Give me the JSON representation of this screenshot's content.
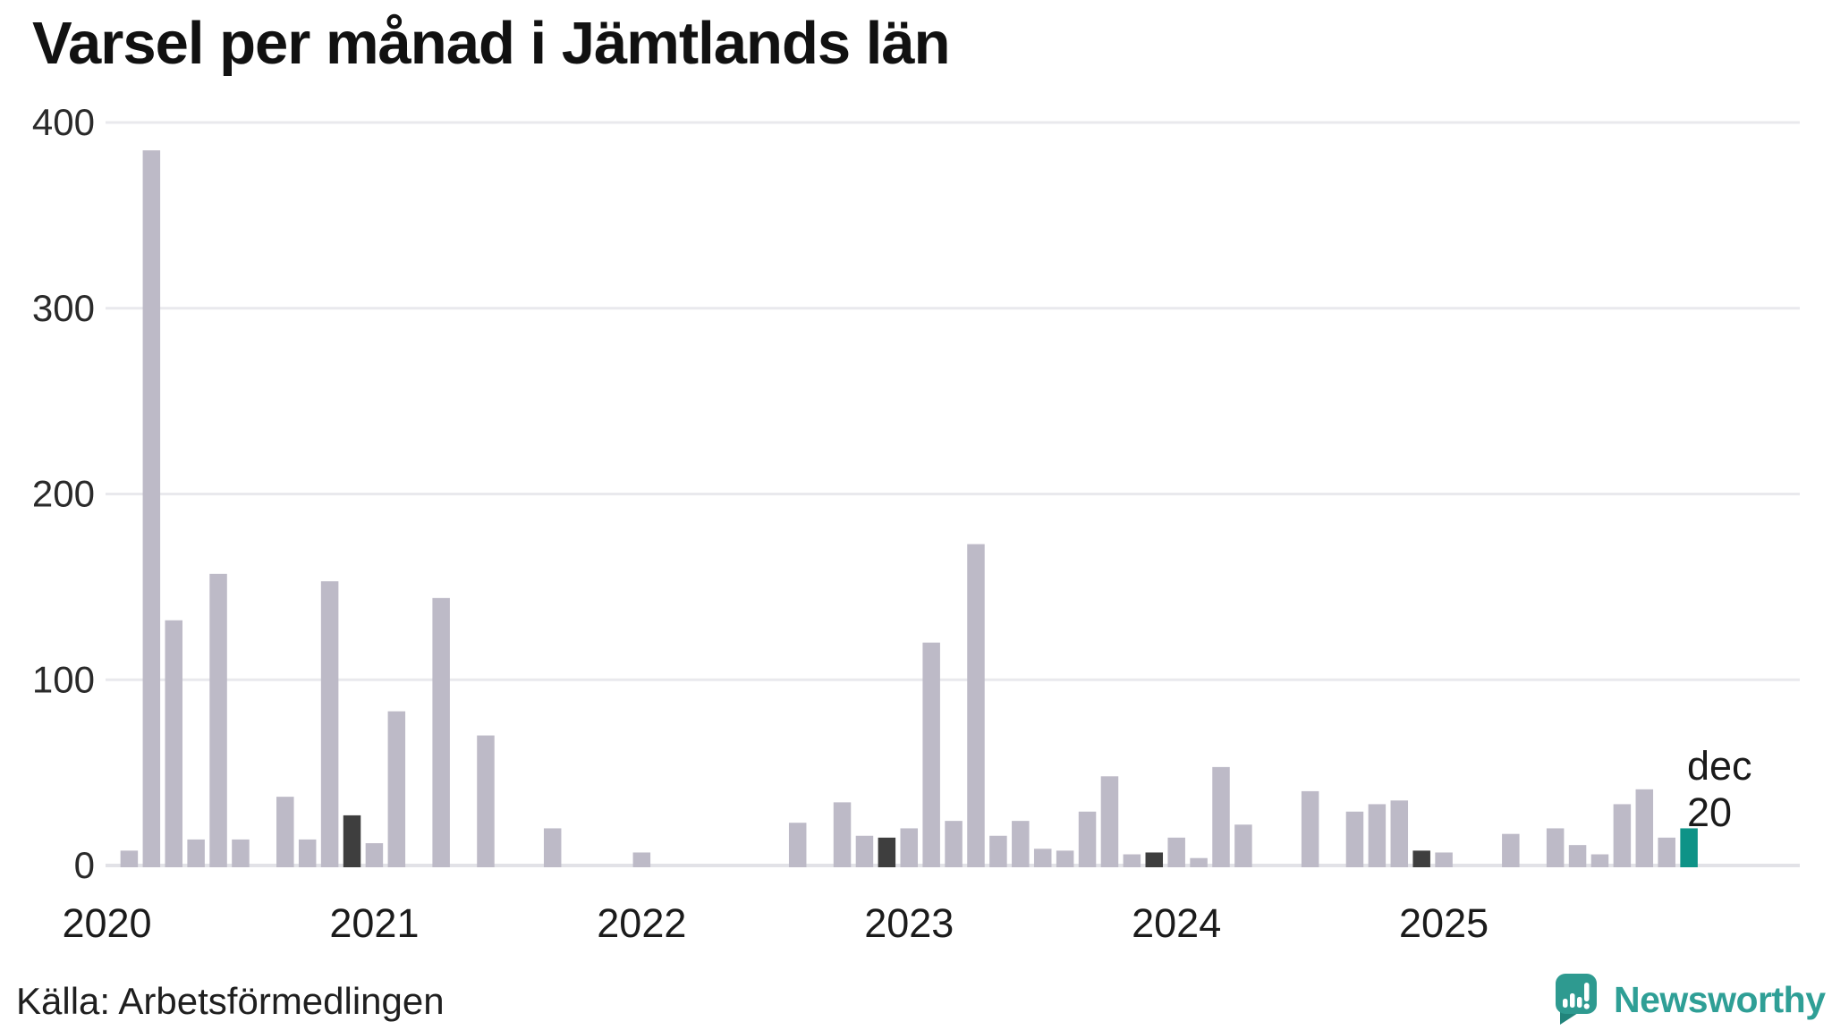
{
  "page": {
    "title": "Varsel per månad i Jämtlands län"
  },
  "footer": {
    "source": "Källa: Arbetsförmedlingen",
    "brand": "Newsworthy"
  },
  "chart_data": {
    "type": "bar",
    "title": "Varsel per månad i Jämtlands län",
    "xlabel": "",
    "ylabel": "",
    "ylim": [
      0,
      400
    ],
    "yticks": [
      0,
      100,
      200,
      300,
      400
    ],
    "grid": true,
    "legend": "none",
    "x_start": "2020-01",
    "x_end": "2025-12",
    "year_labels": [
      "2020",
      "2021",
      "2022",
      "2023",
      "2024",
      "2025"
    ],
    "series": [
      {
        "year": "2020",
        "values": [
          0,
          8,
          385,
          132,
          14,
          157,
          14,
          0,
          37,
          14,
          153,
          27
        ]
      },
      {
        "year": "2021",
        "values": [
          12,
          83,
          0,
          144,
          0,
          70,
          0,
          0,
          20,
          0,
          0,
          0
        ]
      },
      {
        "year": "2022",
        "values": [
          7,
          0,
          0,
          0,
          0,
          0,
          0,
          23,
          0,
          34,
          16,
          15
        ]
      },
      {
        "year": "2023",
        "values": [
          20,
          120,
          24,
          173,
          16,
          24,
          9,
          8,
          29,
          48,
          6,
          7
        ]
      },
      {
        "year": "2024",
        "values": [
          15,
          4,
          53,
          22,
          0,
          0,
          40,
          0,
          29,
          33,
          35,
          8
        ]
      },
      {
        "year": "2025",
        "values": [
          7,
          0,
          0,
          17,
          0,
          20,
          11,
          6,
          33,
          41,
          15,
          20
        ]
      }
    ],
    "highlight": {
      "month": "2025-12",
      "value": 20,
      "label_line1": "dec",
      "label_line2": "20"
    },
    "december_bars_dark": true,
    "colors": {
      "bar": "#bdbac7",
      "december_bar": "#3e3e3e",
      "highlight_bar": "#0e9387",
      "grid": "#e9e9ed",
      "baseline": "#e2e2e7",
      "tick_text": "#2a2a2a",
      "year_text": "#1b1b1b",
      "annotation_text": "#1a1a1a",
      "title_text": "#111111",
      "source_text": "#1f1f1f",
      "brand_teal": "#2f9f96",
      "brand_bubble": "#2e9a90",
      "brand_bubble_dark": "#22847b"
    }
  }
}
